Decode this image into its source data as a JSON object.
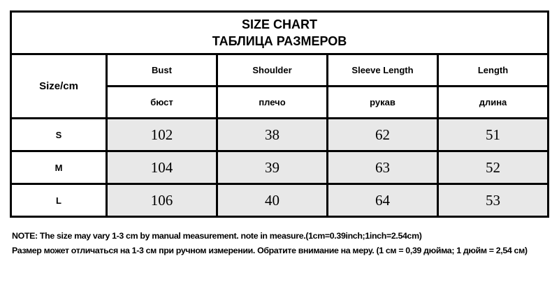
{
  "title": {
    "en": "SIZE CHART",
    "ru": "ТАБЛИЦА РАЗМЕРОВ"
  },
  "size_header": "Size/cm",
  "columns": [
    {
      "en": "Bust",
      "ru": "бюст"
    },
    {
      "en": "Shoulder",
      "ru": "плечо"
    },
    {
      "en": "Sleeve Length",
      "ru": "рукав"
    },
    {
      "en": "Length",
      "ru": "длина"
    }
  ],
  "rows": [
    {
      "size": "S",
      "values": [
        "102",
        "38",
        "62",
        "51"
      ]
    },
    {
      "size": "M",
      "values": [
        "104",
        "39",
        "63",
        "52"
      ]
    },
    {
      "size": "L",
      "values": [
        "106",
        "40",
        "64",
        "53"
      ]
    }
  ],
  "note": {
    "en": "NOTE:  The size may vary 1-3 cm by manual measurement. note in measure.(1cm=0.39inch;1inch=2.54cm)",
    "ru": "Размер может отличаться на 1-3 см при ручном измерении. Обратите внимание на меру. (1 см = 0,39 дюйма; 1 дюйм = 2,54 см)"
  }
}
